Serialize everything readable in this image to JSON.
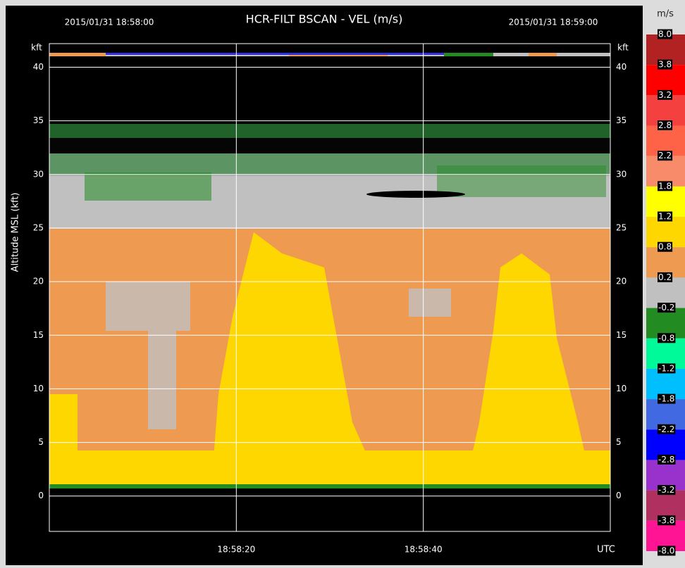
{
  "chart_data": {
    "type": "bscan",
    "title": "HCR-FILT   BSCAN   -   VEL (m/s)",
    "start_time": "2015/01/31 18:58:00",
    "end_time": "2015/01/31 18:59:00",
    "y_unit": "kft",
    "ylabel": "Altitude MSL (kft)",
    "x_unit": "UTC",
    "ylim": [
      -3.3,
      42.2
    ],
    "yticks": [
      0,
      5,
      10,
      15,
      20,
      25,
      30,
      35,
      40
    ],
    "x_tick_labels": [
      "18:58:20",
      "18:58:40"
    ],
    "grid": true,
    "colorbar": {
      "unit": "m/s",
      "levels": [
        {
          "value": 8,
          "label": "8.0"
        },
        3.8,
        3.2,
        2.8,
        2.2,
        1.8,
        1.2,
        0.8,
        0.2,
        -0.2,
        -0.8,
        -1.2,
        -1.8,
        -2.2,
        -2.8,
        -3.2,
        -3.8,
        {
          "value": -8,
          "label": "-8.0"
        }
      ],
      "colors": [
        "#b22222",
        "#ff0000",
        "#f54040",
        "#ff6347",
        "#f88c6a",
        "#ffff00",
        "#ffd700",
        "#ee9a50",
        "#c0c0c0",
        "#228b22",
        "#00fa9a",
        "#00bfff",
        "#4169e1",
        "#0000ff",
        "#9932cc",
        "#b03060",
        "#ff1493"
      ]
    }
  }
}
